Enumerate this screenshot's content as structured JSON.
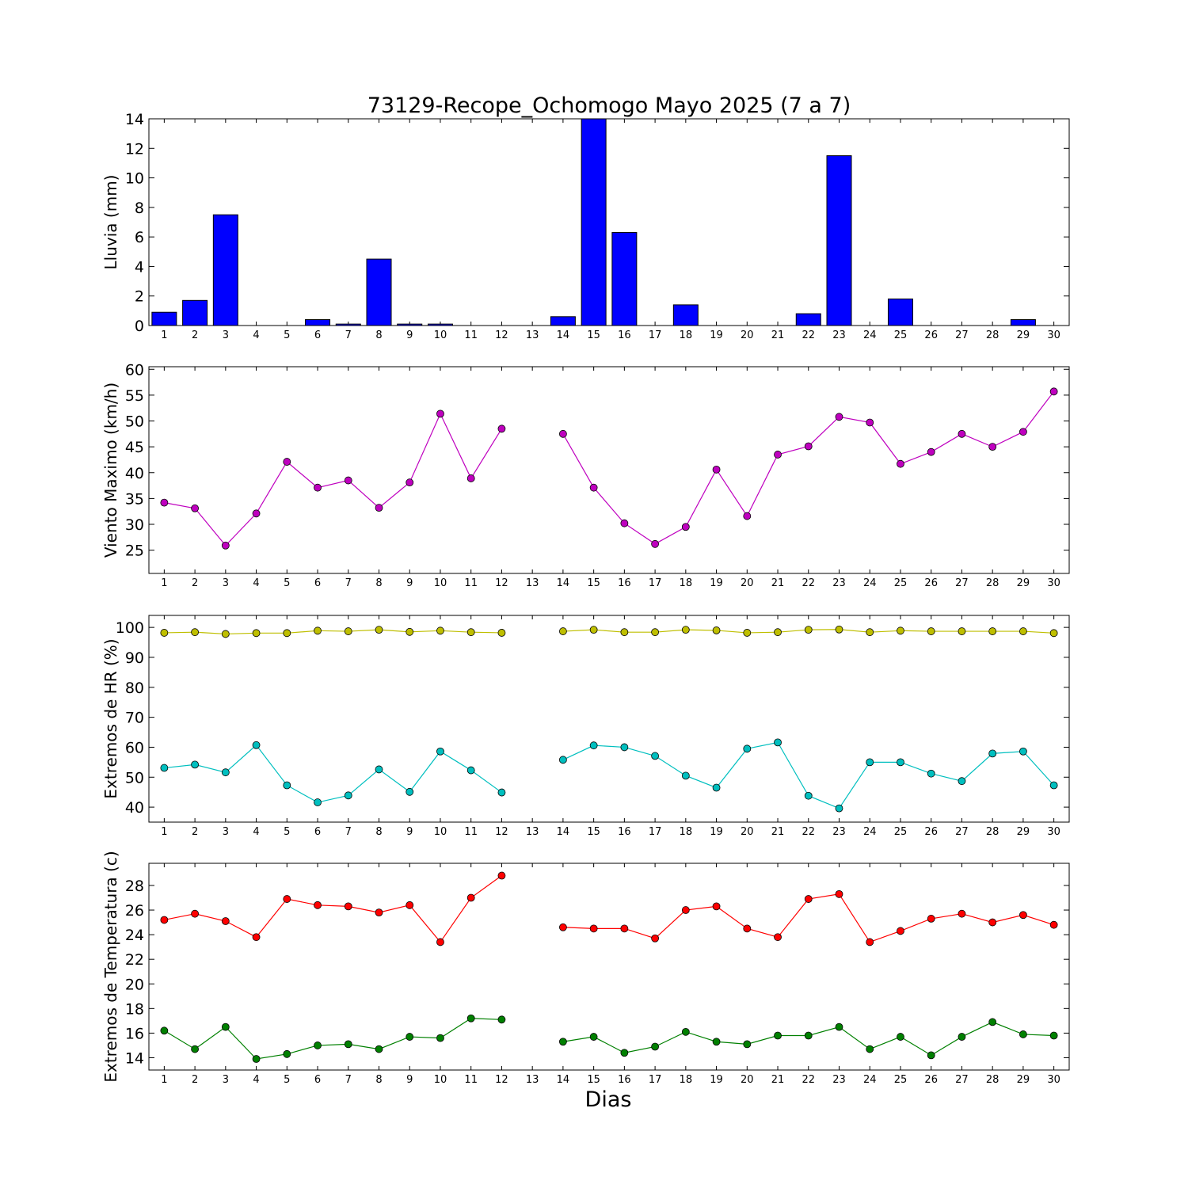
{
  "chart_data": {
    "type": "bar+line",
    "title": "73129-Recope_Ochomogo Mayo 2025  (7 a 7)",
    "xlabel": "Dias",
    "days": [
      1,
      2,
      3,
      4,
      5,
      6,
      7,
      8,
      9,
      10,
      11,
      12,
      13,
      14,
      15,
      16,
      17,
      18,
      19,
      20,
      21,
      22,
      23,
      24,
      25,
      26,
      27,
      28,
      29,
      30
    ],
    "panels": [
      {
        "id": "lluvia",
        "type": "bar",
        "ylabel": "Lluvia (mm)",
        "ylim": [
          0,
          14
        ],
        "yticks": [
          0,
          2,
          4,
          6,
          8,
          10,
          12,
          14
        ],
        "series": [
          {
            "color": "#0000ff",
            "values": [
              0.9,
              1.7,
              7.5,
              0,
              0,
              0.4,
              0.1,
              4.5,
              0.1,
              0.1,
              0,
              0,
              0,
              0.6,
              14.0,
              6.3,
              0,
              1.4,
              0,
              0,
              0,
              0.8,
              11.5,
              0,
              1.8,
              0,
              0,
              0,
              0.4,
              0
            ]
          }
        ]
      },
      {
        "id": "viento",
        "type": "line",
        "ylabel": "Viento Maximo (km/h)",
        "ylim": [
          20.5,
          60.5
        ],
        "yticks": [
          25,
          30,
          35,
          40,
          45,
          50,
          55,
          60
        ],
        "series": [
          {
            "color": "#bf00bf",
            "values": [
              34.2,
              33.1,
              25.9,
              32.1,
              42.1,
              37.1,
              38.5,
              33.2,
              38.1,
              51.4,
              38.9,
              48.5,
              null,
              47.5,
              37.1,
              30.2,
              26.2,
              29.5,
              40.6,
              31.6,
              43.5,
              45.1,
              50.8,
              49.7,
              41.7,
              44.0,
              47.5,
              45.0,
              47.9,
              55.7
            ]
          }
        ]
      },
      {
        "id": "hr",
        "type": "line",
        "ylabel": "Extremos de HR (%)",
        "ylim": [
          35,
          104
        ],
        "yticks": [
          40,
          50,
          60,
          70,
          80,
          90,
          100
        ],
        "series": [
          {
            "color": "#bfbf00",
            "values": [
              98.2,
              98.4,
              97.8,
              98.1,
              98.1,
              98.9,
              98.7,
              99.2,
              98.5,
              98.9,
              98.4,
              98.2,
              null,
              98.7,
              99.2,
              98.4,
              98.4,
              99.2,
              99.0,
              98.2,
              98.4,
              99.2,
              99.3,
              98.4,
              98.9,
              98.7,
              98.7,
              98.7,
              98.7,
              98.1
            ]
          },
          {
            "color": "#00bfbf",
            "values": [
              53.1,
              54.2,
              51.6,
              60.7,
              47.3,
              41.6,
              43.9,
              52.6,
              45.1,
              58.6,
              52.3,
              44.9,
              null,
              55.8,
              60.6,
              60.0,
              57.1,
              50.5,
              46.5,
              59.5,
              61.6,
              43.8,
              39.6,
              55.0,
              55.0,
              51.2,
              48.7,
              57.9,
              58.6,
              47.3
            ]
          }
        ]
      },
      {
        "id": "temp",
        "type": "line",
        "ylabel": "Extremos de Temperatura (c)",
        "ylim": [
          13,
          29.8
        ],
        "yticks": [
          14,
          16,
          18,
          20,
          22,
          24,
          26,
          28
        ],
        "series": [
          {
            "color": "#ff0000",
            "values": [
              25.2,
              25.7,
              25.1,
              23.8,
              26.9,
              26.4,
              26.3,
              25.8,
              26.4,
              23.4,
              27.0,
              28.8,
              null,
              24.6,
              24.5,
              24.5,
              23.7,
              26.0,
              26.3,
              24.5,
              23.8,
              26.9,
              27.3,
              23.4,
              24.3,
              25.3,
              25.7,
              25.0,
              25.6,
              24.8
            ]
          },
          {
            "color": "#008000",
            "values": [
              16.2,
              14.7,
              16.5,
              13.9,
              14.3,
              15.0,
              15.1,
              14.7,
              15.7,
              15.6,
              17.2,
              17.1,
              null,
              15.3,
              15.7,
              14.4,
              14.9,
              16.1,
              15.3,
              15.1,
              15.8,
              15.8,
              16.5,
              14.7,
              15.7,
              14.2,
              15.7,
              16.9,
              15.9,
              15.8
            ]
          }
        ]
      }
    ]
  }
}
